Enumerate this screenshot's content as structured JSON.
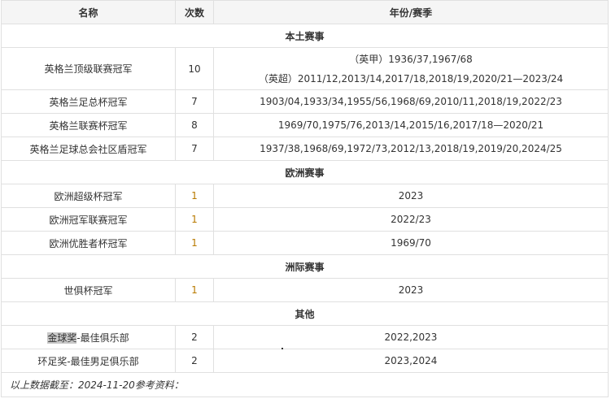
{
  "header": {
    "name": "名称",
    "count": "次数",
    "years": "年份/赛季"
  },
  "sections": [
    {
      "title": "本土赛事",
      "rows": [
        {
          "name": "英格兰顶级联赛冠军",
          "count": "10",
          "years": [
            "（英甲）1936/37,1967/68",
            "（英超）2011/12,2013/14,2017/18,2018/19,2020/21—2023/24"
          ]
        },
        {
          "name": "英格兰足总杯冠军",
          "count": "7",
          "years": [
            "1903/04,1933/34,1955/56,1968/69,2010/11,2018/19,2022/23"
          ]
        },
        {
          "name": "英格兰联赛杯冠军",
          "count": "8",
          "years": [
            "1969/70,1975/76,2013/14,2015/16,2017/18—2020/21"
          ]
        },
        {
          "name": "英格兰足球总会社区盾冠军",
          "count": "7",
          "years": [
            "1937/38,1968/69,1972/73,2012/13,2018/19,2019/20,2024/25"
          ]
        }
      ]
    },
    {
      "title": "欧洲赛事",
      "rows": [
        {
          "name": "欧洲超级杯冠军",
          "count": "1",
          "years": [
            "2023"
          ]
        },
        {
          "name": "欧洲冠军联赛冠军",
          "count": "1",
          "years": [
            "2022/23"
          ]
        },
        {
          "name": "欧洲优胜者杯冠军",
          "count": "1",
          "years": [
            "1969/70"
          ]
        }
      ]
    },
    {
      "title": "洲际赛事",
      "rows": [
        {
          "name": "世俱杯冠军",
          "count": "1",
          "years": [
            "2023"
          ]
        }
      ]
    },
    {
      "title": "其他",
      "rows": [
        {
          "name_highlight": "金球奖",
          "name": "-最佳俱乐部",
          "count": "2",
          "years": [
            "2022,2023"
          ]
        },
        {
          "name": "环足奖-最佳男足俱乐部",
          "count": "2",
          "years": [
            "2023,2024"
          ]
        }
      ]
    }
  ],
  "footnote": "以上数据截至：2024-11-20参考资料：",
  "colors": {
    "count_highlight": "#b97a00",
    "header_bg": "#f5f5f5",
    "border": "#e0e0e0"
  }
}
